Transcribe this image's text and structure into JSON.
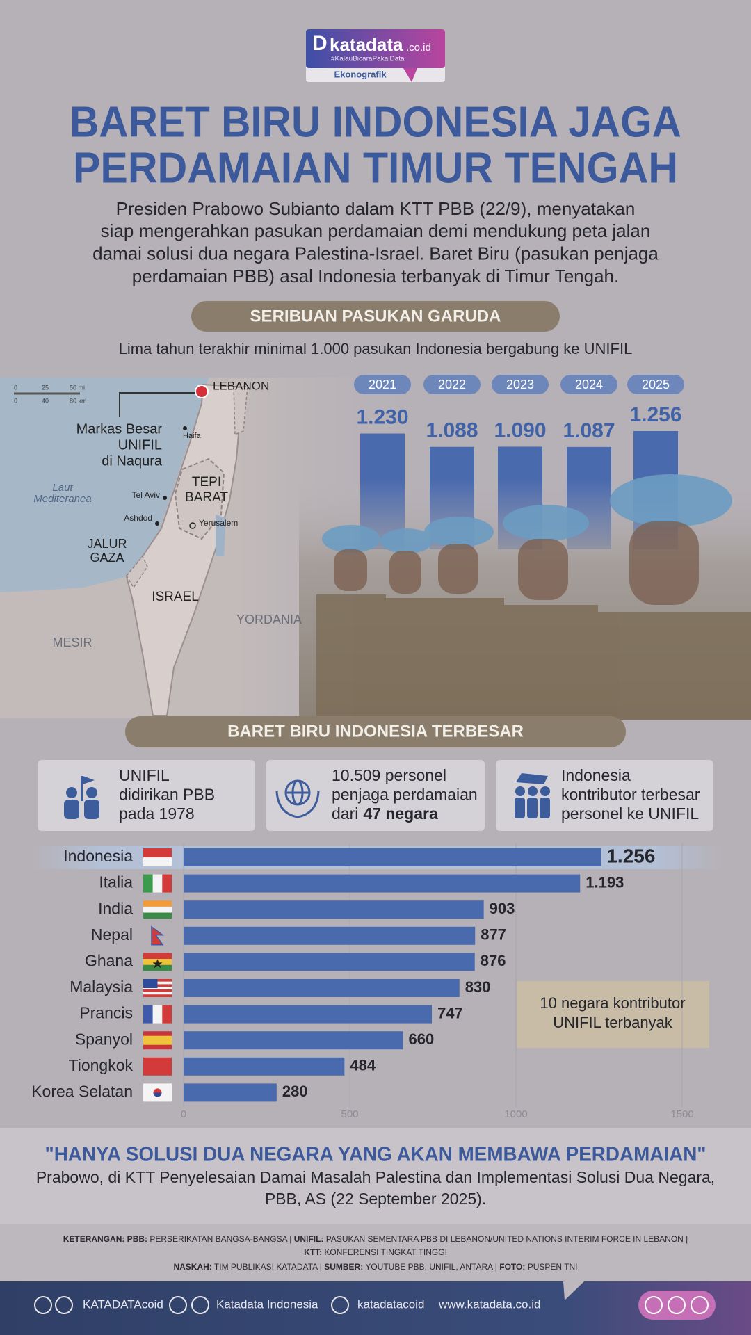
{
  "logo": {
    "brand": "katadata",
    "domain": ".co.id",
    "tagline": "#KalauBicaraPakaiData",
    "label": "Ekonografik"
  },
  "title": [
    "BARET BIRU INDONESIA JAGA",
    "PERDAMAIAN TIMUR TENGAH"
  ],
  "intro": [
    "Presiden Prabowo Subianto dalam KTT PBB (22/9), menyatakan",
    "siap mengerahkan pasukan perdamaian demi mendukung peta jalan",
    "damai solusi dua negara Palestina-Israel. Baret Biru (pasukan penjaga",
    "perdamaian PBB) asal Indonesia terbanyak di Timur Tengah."
  ],
  "section1": {
    "heading": "SERIBUAN PASUKAN GARUDA",
    "subheading": "Lima tahun terakhir minimal 1.000 pasukan Indonesia bergabung ke UNIFIL"
  },
  "map": {
    "scale_mi": [
      "0",
      "25",
      "50 mi"
    ],
    "scale_km": [
      "0",
      "40",
      "80 km"
    ],
    "lebanon": "LEBANON",
    "hq": [
      "Markas Besar",
      "UNIFIL",
      "di Naqura"
    ],
    "haifa": "Haifa",
    "sea": [
      "Laut",
      "Mediteranea"
    ],
    "tel_aviv": "Tel Aviv",
    "ashdod": "Ashdod",
    "jerusalem": "Yerusalem",
    "west_bank": [
      "TEPI",
      "BARAT"
    ],
    "gaza": [
      "JALUR",
      "GAZA"
    ],
    "israel": "ISRAEL",
    "jordan": "YORDANIA",
    "egypt": "MESIR"
  },
  "section2": {
    "heading": "BARET BIRU INDONESIA TERBESAR",
    "cards": [
      [
        [
          "UNIFIL"
        ],
        [
          "didirikan PBB"
        ],
        [
          "pada 1978"
        ]
      ],
      [
        [
          "10.509 personel"
        ],
        [
          "penjaga perdamaian"
        ],
        [
          "dari",
          "47 negara"
        ]
      ],
      [
        [
          "Indonesia"
        ],
        [
          "kontributor terbesar"
        ],
        [
          "personel ke UNIFIL"
        ]
      ]
    ]
  },
  "chart_data": [
    {
      "type": "bar",
      "categories": [
        "2021",
        "2022",
        "2023",
        "2024",
        "2025"
      ],
      "values": [
        1230,
        1088,
        1090,
        1087,
        1256
      ],
      "value_labels": [
        "1.230",
        "1.088",
        "1.090",
        "1.087",
        "1.256"
      ],
      "color": "#4a6aae"
    },
    {
      "type": "barh",
      "categories": [
        "Indonesia",
        "Italia",
        "India",
        "Nepal",
        "Ghana",
        "Malaysia",
        "Prancis",
        "Spanyol",
        "Tiongkok",
        "Korea Selatan"
      ],
      "values": [
        1256,
        1193,
        903,
        877,
        876,
        830,
        747,
        660,
        484,
        280
      ],
      "value_labels": [
        "1.256",
        "1.193",
        "903",
        "877",
        "876",
        "830",
        "747",
        "660",
        "484",
        "280"
      ],
      "color": "#4a6aae",
      "xlim": [
        0,
        1500
      ],
      "xticks": [
        0,
        500,
        1000,
        1500
      ],
      "grid": true,
      "annotation": [
        "10 negara kontributor",
        "UNIFIL terbanyak"
      ]
    }
  ],
  "quote": {
    "text": "\"HANYA SOLUSI DUA NEGARA YANG AKAN MEMBAWA PERDAMAIAN\"",
    "attribution": [
      "Prabowo, di KTT Penyelesaian Damai Masalah Palestina dan Implementasi Solusi Dua Negara,",
      "PBB, AS (22 September 2025)."
    ]
  },
  "notes": [
    [
      "KETERANGAN: PBB:",
      " PERSERIKATAN BANGSA-BANGSA | ",
      "UNIFIL:",
      " PASUKAN SEMENTARA PBB DI LEBANON/UNITED NATIONS INTERIM FORCE IN LEBANON |"
    ],
    [
      "KTT:",
      " KONFERENSI TINGKAT TINGGI"
    ],
    [
      "NASKAH:",
      " TIM PUBLIKASI KATADATA | ",
      "SUMBER:",
      " YOUTUBE PBB, UNIFIL, ANTARA | ",
      "FOTO:",
      " PUSPEN TNI"
    ]
  ],
  "footer": {
    "social": [
      "KATADATAcoid",
      "Katadata Indonesia",
      "katadatacoid",
      "www.katadata.co.id"
    ]
  }
}
